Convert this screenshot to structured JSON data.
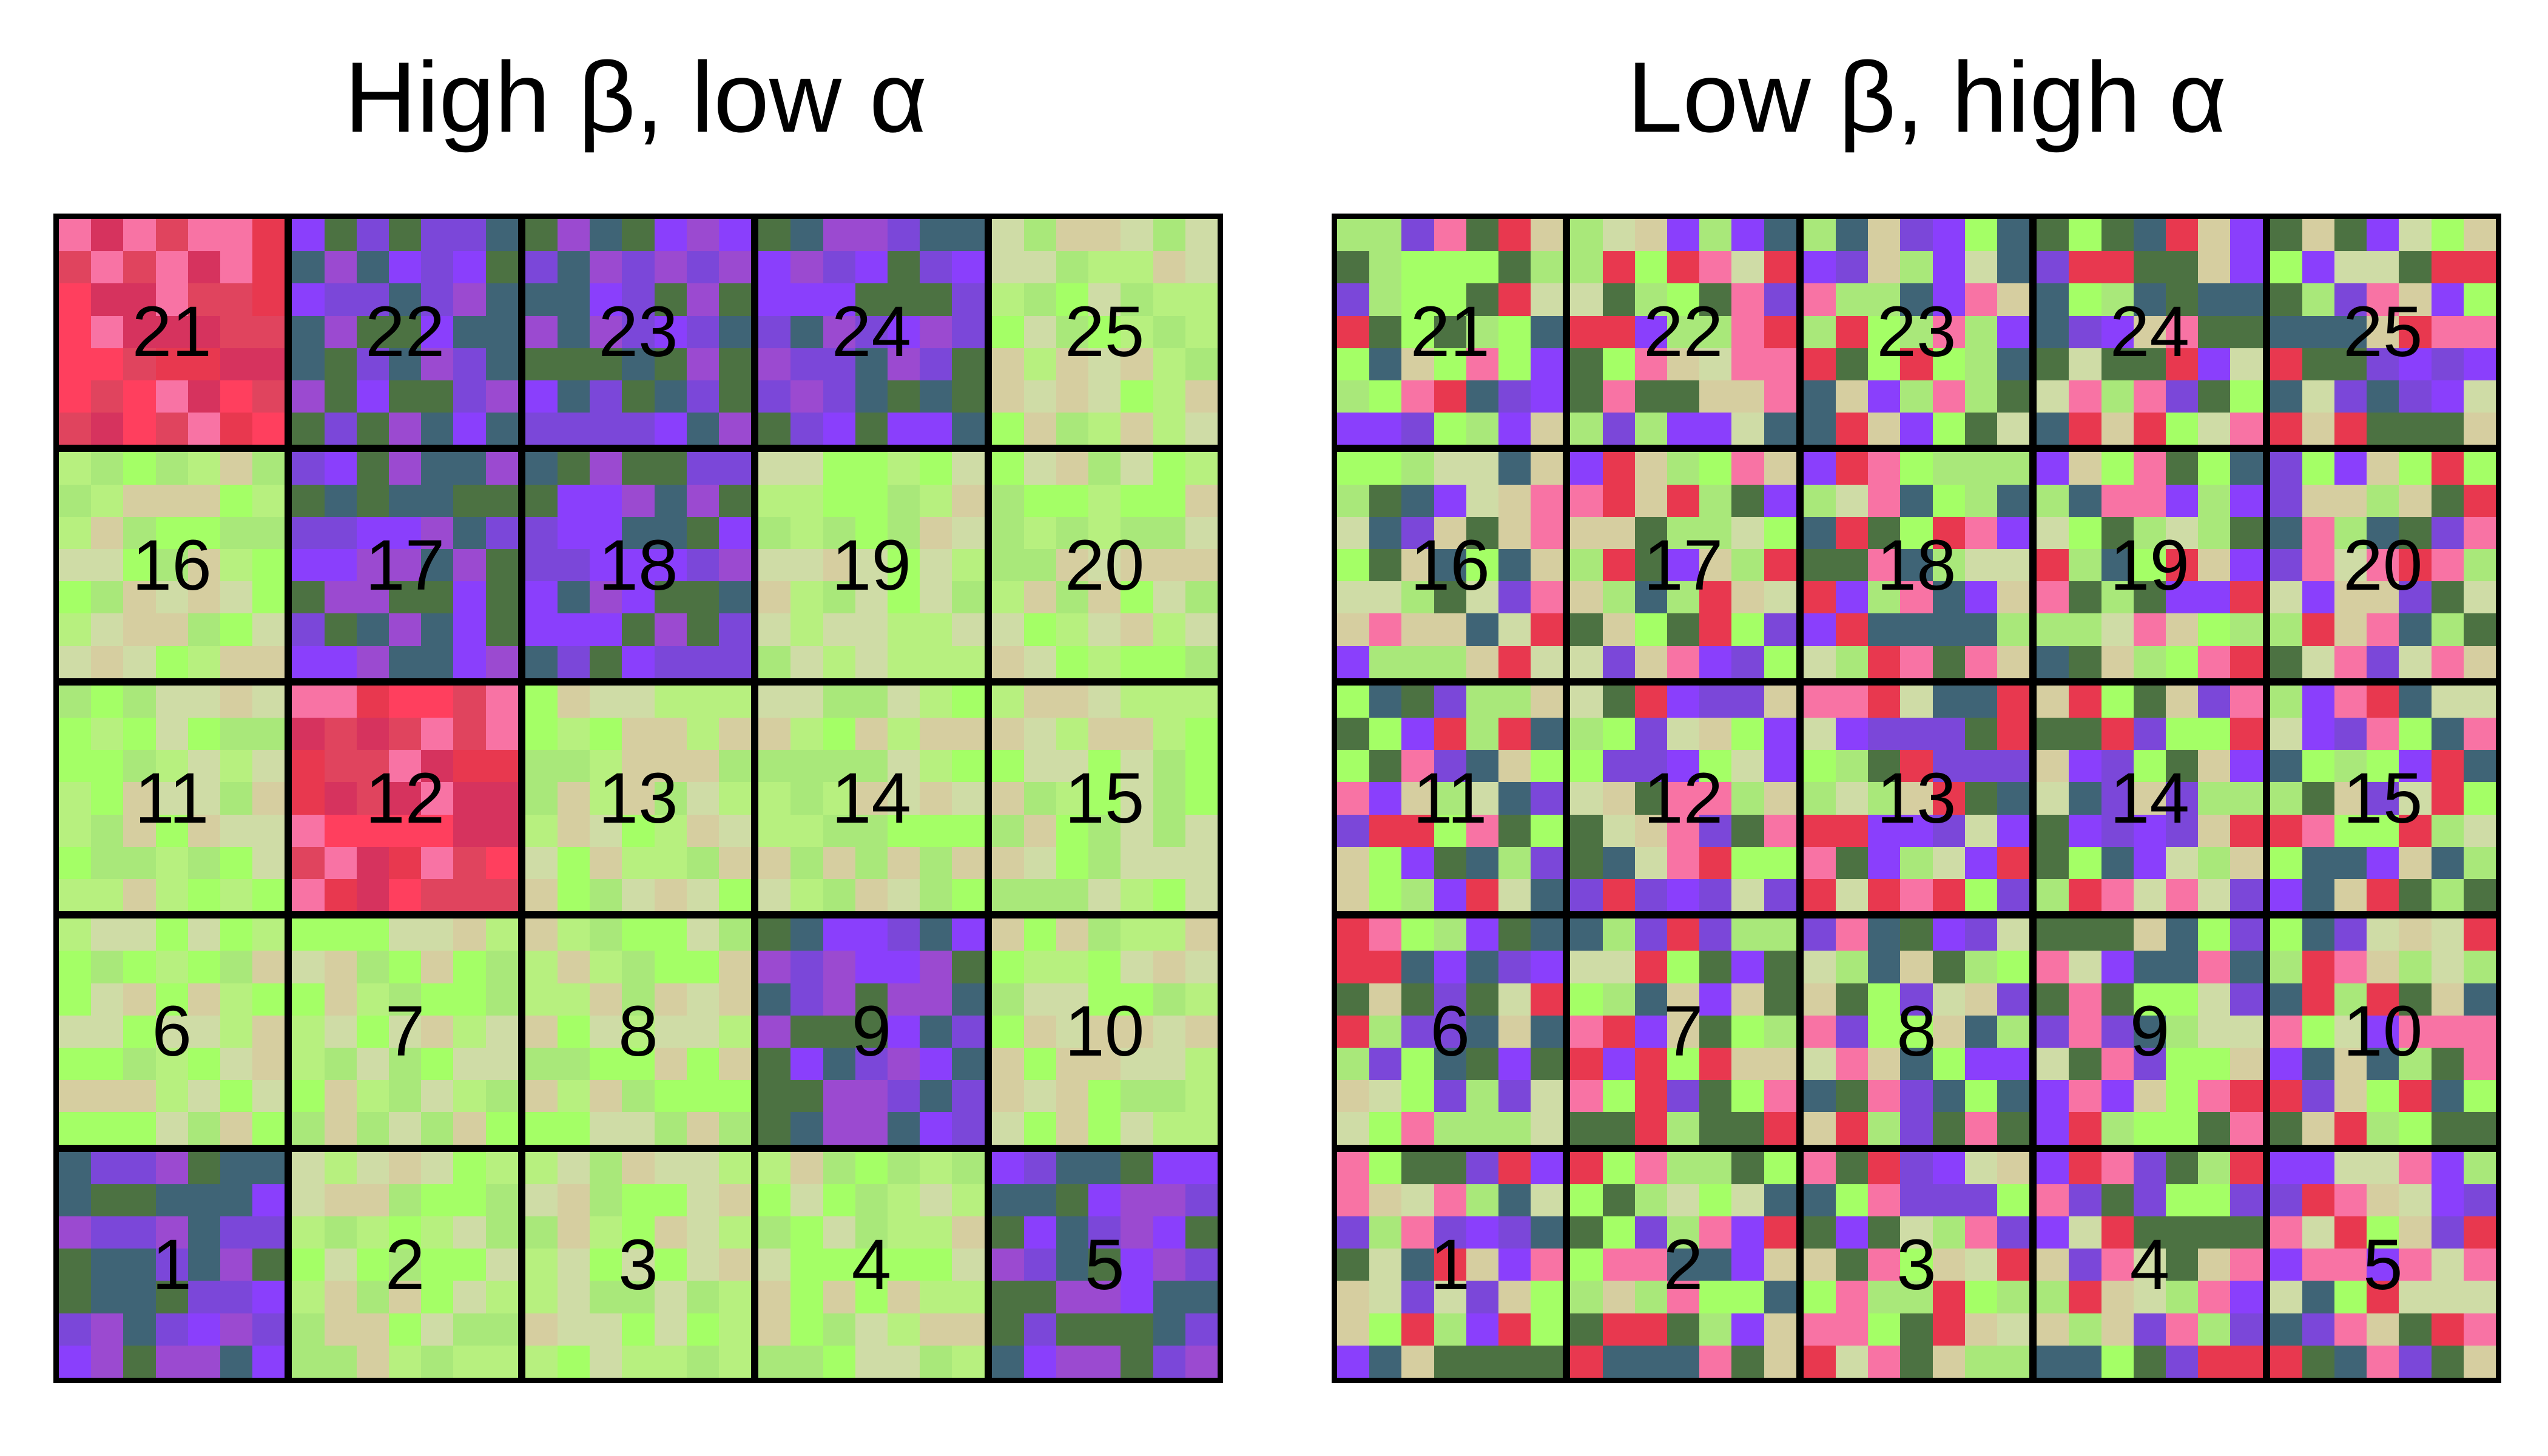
{
  "panels": [
    {
      "title": "High β, low α",
      "mode": "clustered",
      "block_labels": [
        "21",
        "22",
        "23",
        "24",
        "25",
        "16",
        "17",
        "18",
        "19",
        "20",
        "11",
        "12",
        "13",
        "14",
        "15",
        "6",
        "7",
        "8",
        "9",
        "10",
        "1",
        "2",
        "3",
        "4",
        "5"
      ],
      "block_themes": [
        "red",
        "bluepurple",
        "bluepurple",
        "bluepurple",
        "green",
        "green",
        "bluepurple",
        "bluepurple",
        "green",
        "green",
        "green",
        "red",
        "green",
        "green",
        "green",
        "green",
        "green",
        "green",
        "bluepurple",
        "green",
        "bluepurple",
        "green",
        "green",
        "green",
        "bluepurple"
      ]
    },
    {
      "title": "Low β, high α",
      "mode": "mixed",
      "block_labels": [
        "21",
        "22",
        "23",
        "24",
        "25",
        "16",
        "17",
        "18",
        "19",
        "20",
        "11",
        "12",
        "13",
        "14",
        "15",
        "6",
        "7",
        "8",
        "9",
        "10",
        "1",
        "2",
        "3",
        "4",
        "5"
      ]
    }
  ],
  "palette": {
    "red": [
      "#e8384f",
      "#d6335e",
      "#ff3f5e",
      "#f873a4",
      "#e0445e"
    ],
    "bluepurple": [
      "#8a3ffc",
      "#7b47d9",
      "#3f6476",
      "#4c7242",
      "#9b4ad0"
    ],
    "green": [
      "#a4ff66",
      "#a9e87a",
      "#cfdca6",
      "#d6cea0",
      "#b7f07f"
    ],
    "mixed": [
      "#a4ff66",
      "#a9e87a",
      "#cfdca6",
      "#d6cea0",
      "#8a3ffc",
      "#7b47d9",
      "#3f6476",
      "#4c7242",
      "#e8384f",
      "#f873a4"
    ]
  }
}
